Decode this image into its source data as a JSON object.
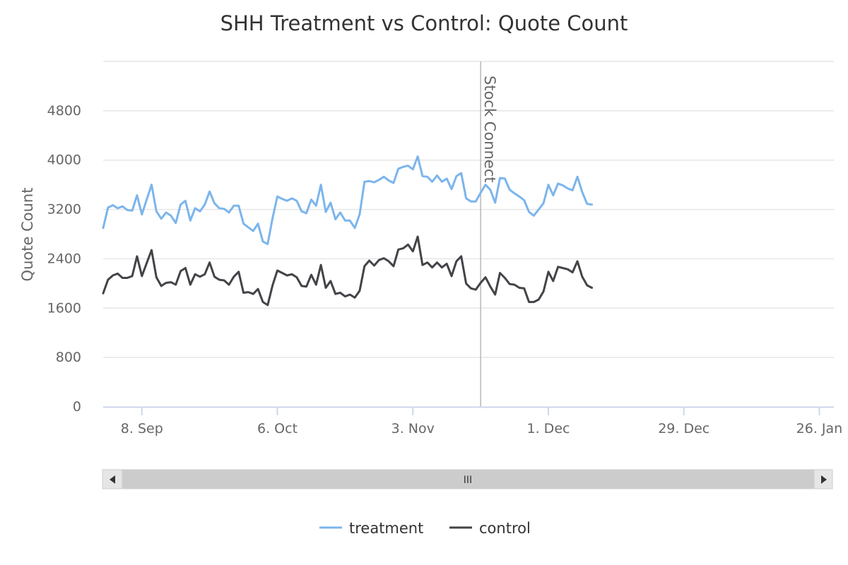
{
  "chart_data": {
    "type": "line",
    "title": "SHH Treatment vs Control: Quote Count",
    "xlabel": "",
    "ylabel": "Quote Count",
    "xlim": [
      "2014-08-31",
      "2015-01-29"
    ],
    "ylim": [
      0,
      5600
    ],
    "y_ticks": [
      0,
      800,
      1600,
      2400,
      3200,
      4000,
      4800
    ],
    "y_tick_labels": [
      "0",
      "800",
      "1600",
      "2400",
      "3200",
      "4000",
      "4800"
    ],
    "x_ticks": [
      "2014-09-08",
      "2014-10-06",
      "2014-11-03",
      "2014-12-01",
      "2014-12-29",
      "2015-01-26"
    ],
    "x_tick_labels": [
      "8. Sep",
      "6. Oct",
      "3. Nov",
      "1. Dec",
      "29. Dec",
      "26. Jan"
    ],
    "grid": true,
    "legend_position": "bottom",
    "annotations": [
      {
        "type": "vertical-line",
        "x": "2014-11-17",
        "label": "Stock Connect"
      }
    ],
    "series": [
      {
        "name": "treatment",
        "color": "#7cb5ec",
        "points": [
          [
            "2014-08-31",
            2900
          ],
          [
            "2014-09-01",
            3230
          ],
          [
            "2014-09-02",
            3270
          ],
          [
            "2014-09-03",
            3220
          ],
          [
            "2014-09-04",
            3250
          ],
          [
            "2014-09-05",
            3190
          ],
          [
            "2014-09-06",
            3180
          ],
          [
            "2014-09-07",
            3430
          ],
          [
            "2014-09-08",
            3120
          ],
          [
            "2014-09-09",
            3360
          ],
          [
            "2014-09-10",
            3600
          ],
          [
            "2014-09-11",
            3170
          ],
          [
            "2014-09-12",
            3050
          ],
          [
            "2014-09-13",
            3150
          ],
          [
            "2014-09-14",
            3100
          ],
          [
            "2014-09-15",
            2980
          ],
          [
            "2014-09-16",
            3280
          ],
          [
            "2014-09-17",
            3340
          ],
          [
            "2014-09-18",
            3020
          ],
          [
            "2014-09-19",
            3220
          ],
          [
            "2014-09-20",
            3170
          ],
          [
            "2014-09-21",
            3280
          ],
          [
            "2014-09-22",
            3490
          ],
          [
            "2014-09-23",
            3300
          ],
          [
            "2014-09-24",
            3220
          ],
          [
            "2014-09-25",
            3210
          ],
          [
            "2014-09-26",
            3150
          ],
          [
            "2014-09-27",
            3260
          ],
          [
            "2014-09-28",
            3260
          ],
          [
            "2014-09-29",
            2970
          ],
          [
            "2014-09-30",
            2910
          ],
          [
            "2014-10-01",
            2850
          ],
          [
            "2014-10-02",
            2970
          ],
          [
            "2014-10-03",
            2680
          ],
          [
            "2014-10-04",
            2640
          ],
          [
            "2014-10-05",
            3060
          ],
          [
            "2014-10-06",
            3410
          ],
          [
            "2014-10-07",
            3370
          ],
          [
            "2014-10-08",
            3340
          ],
          [
            "2014-10-09",
            3380
          ],
          [
            "2014-10-10",
            3340
          ],
          [
            "2014-10-11",
            3170
          ],
          [
            "2014-10-12",
            3140
          ],
          [
            "2014-10-13",
            3360
          ],
          [
            "2014-10-14",
            3260
          ],
          [
            "2014-10-15",
            3600
          ],
          [
            "2014-10-16",
            3160
          ],
          [
            "2014-10-17",
            3310
          ],
          [
            "2014-10-18",
            3040
          ],
          [
            "2014-10-19",
            3150
          ],
          [
            "2014-10-20",
            3020
          ],
          [
            "2014-10-21",
            3020
          ],
          [
            "2014-10-22",
            2900
          ],
          [
            "2014-10-23",
            3120
          ],
          [
            "2014-10-24",
            3650
          ],
          [
            "2014-10-25",
            3660
          ],
          [
            "2014-10-26",
            3640
          ],
          [
            "2014-10-27",
            3680
          ],
          [
            "2014-10-28",
            3730
          ],
          [
            "2014-10-29",
            3670
          ],
          [
            "2014-10-30",
            3630
          ],
          [
            "2014-10-31",
            3860
          ],
          [
            "2014-11-01",
            3890
          ],
          [
            "2014-11-02",
            3910
          ],
          [
            "2014-11-03",
            3850
          ],
          [
            "2014-11-04",
            4060
          ],
          [
            "2014-11-05",
            3740
          ],
          [
            "2014-11-06",
            3730
          ],
          [
            "2014-11-07",
            3650
          ],
          [
            "2014-11-08",
            3750
          ],
          [
            "2014-11-09",
            3650
          ],
          [
            "2014-11-10",
            3700
          ],
          [
            "2014-11-11",
            3530
          ],
          [
            "2014-11-12",
            3740
          ],
          [
            "2014-11-13",
            3790
          ],
          [
            "2014-11-14",
            3380
          ],
          [
            "2014-11-15",
            3330
          ],
          [
            "2014-11-16",
            3330
          ],
          [
            "2014-11-17",
            3470
          ],
          [
            "2014-11-18",
            3600
          ],
          [
            "2014-11-19",
            3520
          ],
          [
            "2014-11-20",
            3310
          ],
          [
            "2014-11-21",
            3710
          ],
          [
            "2014-11-22",
            3700
          ],
          [
            "2014-11-23",
            3520
          ],
          [
            "2014-11-24",
            3460
          ],
          [
            "2014-11-25",
            3410
          ],
          [
            "2014-11-26",
            3350
          ],
          [
            "2014-11-27",
            3160
          ],
          [
            "2014-11-28",
            3100
          ],
          [
            "2014-11-29",
            3200
          ],
          [
            "2014-11-30",
            3300
          ],
          [
            "2014-12-01",
            3600
          ],
          [
            "2014-12-02",
            3430
          ],
          [
            "2014-12-03",
            3620
          ],
          [
            "2014-12-04",
            3590
          ],
          [
            "2014-12-05",
            3540
          ],
          [
            "2014-12-06",
            3510
          ],
          [
            "2014-12-07",
            3730
          ],
          [
            "2014-12-08",
            3480
          ],
          [
            "2014-12-09",
            3290
          ],
          [
            "2014-12-10",
            3280
          ]
        ]
      },
      {
        "name": "control",
        "color": "#434348",
        "points": [
          [
            "2014-08-31",
            1840
          ],
          [
            "2014-09-01",
            2060
          ],
          [
            "2014-09-02",
            2130
          ],
          [
            "2014-09-03",
            2160
          ],
          [
            "2014-09-04",
            2090
          ],
          [
            "2014-09-05",
            2090
          ],
          [
            "2014-09-06",
            2120
          ],
          [
            "2014-09-07",
            2440
          ],
          [
            "2014-09-08",
            2120
          ],
          [
            "2014-09-09",
            2330
          ],
          [
            "2014-09-10",
            2540
          ],
          [
            "2014-09-11",
            2100
          ],
          [
            "2014-09-12",
            1960
          ],
          [
            "2014-09-13",
            2010
          ],
          [
            "2014-09-14",
            2020
          ],
          [
            "2014-09-15",
            1980
          ],
          [
            "2014-09-16",
            2200
          ],
          [
            "2014-09-17",
            2250
          ],
          [
            "2014-09-18",
            1980
          ],
          [
            "2014-09-19",
            2150
          ],
          [
            "2014-09-20",
            2110
          ],
          [
            "2014-09-21",
            2150
          ],
          [
            "2014-09-22",
            2340
          ],
          [
            "2014-09-23",
            2110
          ],
          [
            "2014-09-24",
            2060
          ],
          [
            "2014-09-25",
            2050
          ],
          [
            "2014-09-26",
            1980
          ],
          [
            "2014-09-27",
            2110
          ],
          [
            "2014-09-28",
            2190
          ],
          [
            "2014-09-29",
            1850
          ],
          [
            "2014-09-30",
            1860
          ],
          [
            "2014-10-01",
            1830
          ],
          [
            "2014-10-02",
            1910
          ],
          [
            "2014-10-03",
            1700
          ],
          [
            "2014-10-04",
            1650
          ],
          [
            "2014-10-05",
            1970
          ],
          [
            "2014-10-06",
            2210
          ],
          [
            "2014-10-07",
            2170
          ],
          [
            "2014-10-08",
            2130
          ],
          [
            "2014-10-09",
            2150
          ],
          [
            "2014-10-10",
            2100
          ],
          [
            "2014-10-11",
            1960
          ],
          [
            "2014-10-12",
            1950
          ],
          [
            "2014-10-13",
            2140
          ],
          [
            "2014-10-14",
            1980
          ],
          [
            "2014-10-15",
            2300
          ],
          [
            "2014-10-16",
            1930
          ],
          [
            "2014-10-17",
            2040
          ],
          [
            "2014-10-18",
            1830
          ],
          [
            "2014-10-19",
            1850
          ],
          [
            "2014-10-20",
            1790
          ],
          [
            "2014-10-21",
            1820
          ],
          [
            "2014-10-22",
            1770
          ],
          [
            "2014-10-23",
            1880
          ],
          [
            "2014-10-24",
            2280
          ],
          [
            "2014-10-25",
            2370
          ],
          [
            "2014-10-26",
            2290
          ],
          [
            "2014-10-27",
            2380
          ],
          [
            "2014-10-28",
            2410
          ],
          [
            "2014-10-29",
            2360
          ],
          [
            "2014-10-30",
            2280
          ],
          [
            "2014-10-31",
            2550
          ],
          [
            "2014-11-01",
            2570
          ],
          [
            "2014-11-02",
            2630
          ],
          [
            "2014-11-03",
            2520
          ],
          [
            "2014-11-04",
            2760
          ],
          [
            "2014-11-05",
            2300
          ],
          [
            "2014-11-06",
            2340
          ],
          [
            "2014-11-07",
            2260
          ],
          [
            "2014-11-08",
            2340
          ],
          [
            "2014-11-09",
            2260
          ],
          [
            "2014-11-10",
            2320
          ],
          [
            "2014-11-11",
            2120
          ],
          [
            "2014-11-12",
            2360
          ],
          [
            "2014-11-13",
            2440
          ],
          [
            "2014-11-14",
            2000
          ],
          [
            "2014-11-15",
            1920
          ],
          [
            "2014-11-16",
            1900
          ],
          [
            "2014-11-17",
            2010
          ],
          [
            "2014-11-18",
            2100
          ],
          [
            "2014-11-19",
            1950
          ],
          [
            "2014-11-20",
            1820
          ],
          [
            "2014-11-21",
            2170
          ],
          [
            "2014-11-22",
            2090
          ],
          [
            "2014-11-23",
            1990
          ],
          [
            "2014-11-24",
            1980
          ],
          [
            "2014-11-25",
            1930
          ],
          [
            "2014-11-26",
            1920
          ],
          [
            "2014-11-27",
            1700
          ],
          [
            "2014-11-28",
            1700
          ],
          [
            "2014-11-29",
            1740
          ],
          [
            "2014-11-30",
            1870
          ],
          [
            "2014-12-01",
            2190
          ],
          [
            "2014-12-02",
            2040
          ],
          [
            "2014-12-03",
            2270
          ],
          [
            "2014-12-04",
            2250
          ],
          [
            "2014-12-05",
            2230
          ],
          [
            "2014-12-06",
            2180
          ],
          [
            "2014-12-07",
            2360
          ],
          [
            "2014-12-08",
            2110
          ],
          [
            "2014-12-09",
            1970
          ],
          [
            "2014-12-10",
            1930
          ]
        ]
      }
    ]
  },
  "navigator": {
    "scroll_left_icon": "arrow-left-icon",
    "scroll_right_icon": "arrow-right-icon",
    "grip_glyph": "III"
  }
}
